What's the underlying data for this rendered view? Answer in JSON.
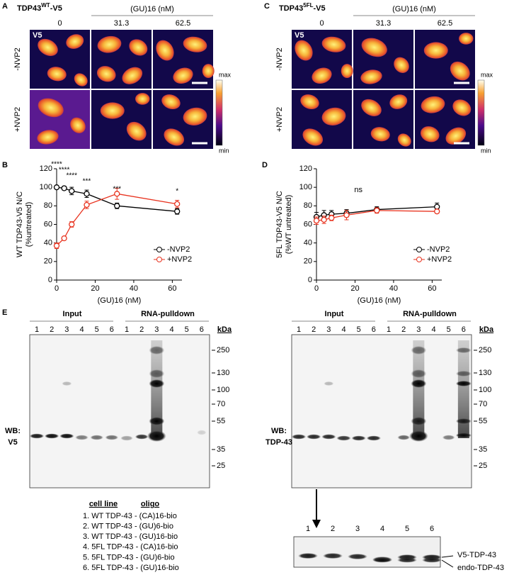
{
  "figure": {
    "panel_A": {
      "letter": "A",
      "title": {
        "base": "TDP43",
        "sup": "WT",
        "suffix": "-V5"
      },
      "dose_header": "(GU)16 (nM)",
      "columns": [
        "0",
        "31.3",
        "62.5"
      ],
      "rows": [
        "-NVP2",
        "+NVP2"
      ],
      "stain": "V5",
      "scale_max": "max",
      "scale_min": "min"
    },
    "panel_C": {
      "letter": "C",
      "title": {
        "base": "TDP43",
        "sup": "5FL",
        "suffix": "-V5"
      },
      "dose_header": "(GU)16 (nM)",
      "columns": [
        "0",
        "31.3",
        "62.5"
      ],
      "rows": [
        "-NVP2",
        "+NVP2"
      ],
      "stain": "V5",
      "scale_max": "max",
      "scale_min": "min"
    }
  },
  "chart_data": [
    {
      "letter": "B",
      "type": "line",
      "y_label": [
        "WT TDP43-V5 N/C",
        "(%untreated)"
      ],
      "x_label": "(GU)16 (nM)",
      "x": [
        0,
        3.9,
        7.8,
        15.6,
        31.3,
        62.5
      ],
      "xlim": [
        0,
        65
      ],
      "xticks": [
        0,
        20,
        40,
        60
      ],
      "ylim": [
        0,
        120
      ],
      "yticks": [
        0,
        20,
        40,
        60,
        80,
        100,
        120
      ],
      "series": [
        {
          "name": "-NVP2",
          "color": "#000000",
          "values": [
            100,
            99,
            96,
            93,
            80,
            74
          ],
          "errors": [
            1,
            2,
            4,
            4,
            3,
            3
          ]
        },
        {
          "name": "+NVP2",
          "color": "#e8321e",
          "values": [
            37,
            45,
            60,
            81,
            93,
            82
          ],
          "errors": [
            3,
            1,
            3,
            4,
            6,
            4
          ]
        }
      ],
      "significance": [
        "****",
        "****",
        "****",
        "***",
        "***",
        "*"
      ],
      "legend": "bottom-right"
    },
    {
      "letter": "D",
      "type": "line",
      "y_label": [
        "5FL TDP43-V5 N/C",
        "(%WT untreated)"
      ],
      "x_label": "(GU)16 (nM)",
      "x": [
        0,
        3.9,
        7.8,
        15.6,
        31.3,
        62.5
      ],
      "xlim": [
        0,
        65
      ],
      "xticks": [
        0,
        20,
        40,
        60
      ],
      "ylim": [
        0,
        120
      ],
      "yticks": [
        0,
        20,
        40,
        60,
        80,
        100,
        120
      ],
      "series": [
        {
          "name": "-NVP2",
          "color": "#000000",
          "values": [
            68,
            70,
            71,
            72,
            76,
            79
          ],
          "errors": [
            5,
            5,
            4,
            4,
            3,
            4
          ]
        },
        {
          "name": "+NVP2",
          "color": "#e8321e",
          "values": [
            64,
            65,
            67,
            70,
            75,
            74
          ],
          "errors": [
            4,
            4,
            3,
            5,
            3,
            2
          ]
        }
      ],
      "annotation": "ns",
      "legend": "bottom-right"
    }
  ],
  "panel_E": {
    "letter": "E",
    "group_labels": [
      "Input",
      "RNA-pulldown"
    ],
    "lanes": [
      "1",
      "2",
      "3",
      "4",
      "5",
      "6"
    ],
    "unit": "kDa",
    "markers": [
      "250",
      "130",
      "100",
      "70",
      "55",
      "35",
      "25"
    ],
    "blots": [
      {
        "wb": [
          "WB:",
          "V5"
        ]
      },
      {
        "wb": [
          "WB:",
          "TDP-43"
        ]
      }
    ],
    "key": {
      "headers": [
        "cell line",
        "oligo"
      ],
      "rows": [
        "1. WT TDP-43 - (CA)16-bio",
        "2. WT TDP-43 - (GU)6-bio",
        "3. WT TDP-43 - (GU)16-bio",
        "4. 5FL TDP-43 - (CA)16-bio",
        "5. 5FL TDP-43 - (GU)6-bio",
        "6. 5FL TDP-43 - (GU)16-bio"
      ]
    },
    "inset": {
      "bands": [
        "V5-TDP-43",
        "endo-TDP-43"
      ]
    }
  }
}
